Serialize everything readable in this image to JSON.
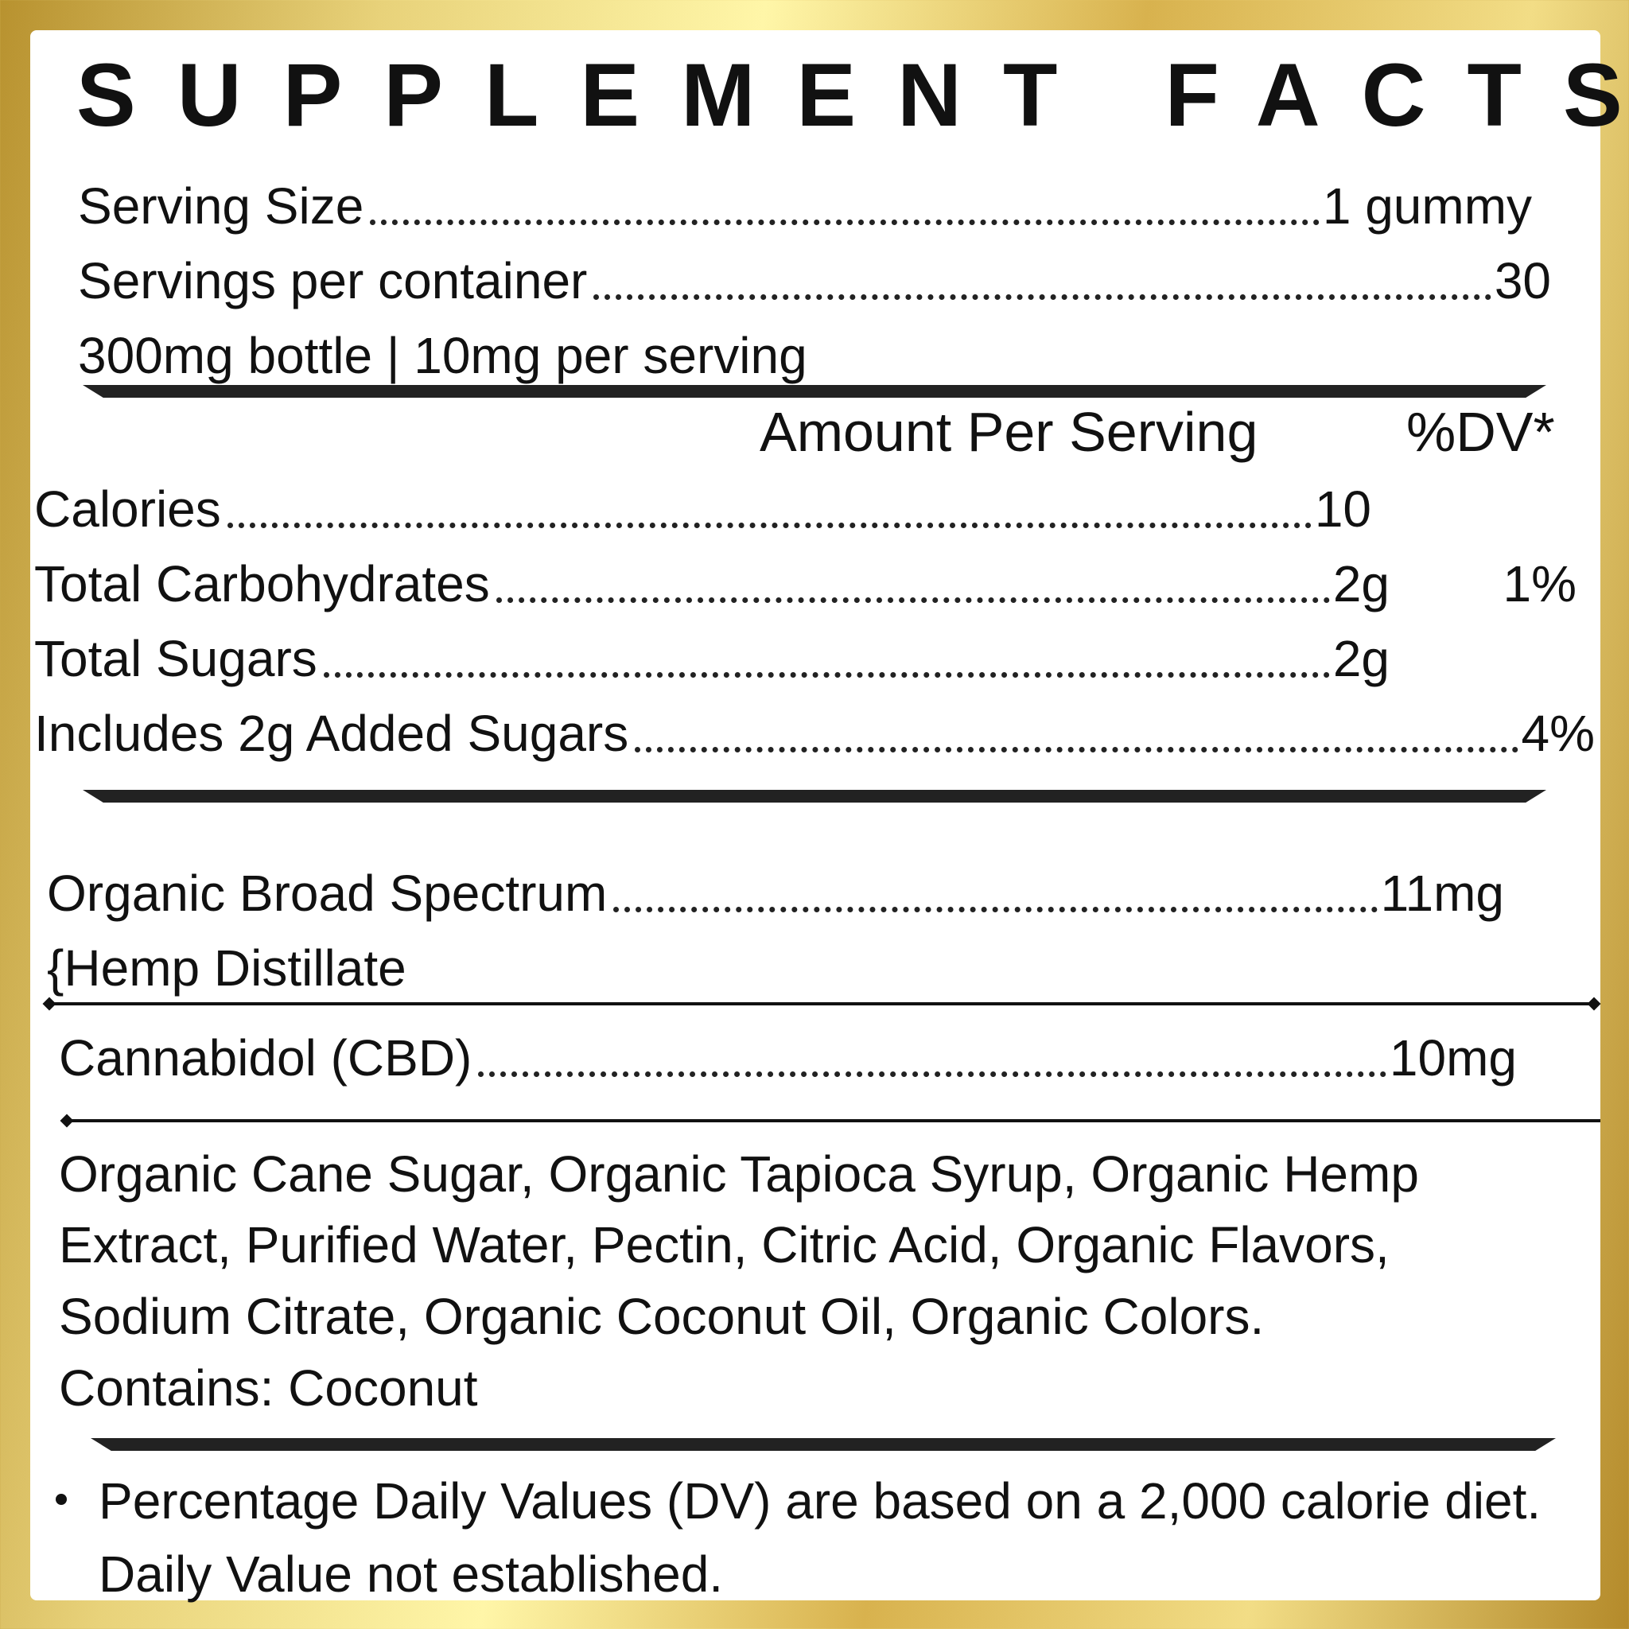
{
  "header": {
    "title": "SUPPLEMENT FACTS"
  },
  "serving": {
    "size_label": "Serving Size",
    "size_value": "1 gummy",
    "per_container_label": "Servings per container",
    "per_container_value": "30",
    "note": "300mg bottle | 10mg per serving"
  },
  "columns": {
    "amount": "Amount Per Serving",
    "dv": "%DV*"
  },
  "nutrients": [
    {
      "label": "Calories",
      "amount": "10"
    },
    {
      "label": "Total Carbohydrates",
      "amount": "2g",
      "dv": "1%"
    },
    {
      "label": "Total Sugars",
      "amount": "2g"
    },
    {
      "label": "Includes 2g Added Sugars",
      "dv": "4%"
    }
  ],
  "extract": {
    "label": "Organic Broad Spectrum",
    "amount": "11mg",
    "sublabel": "{Hemp Distillate"
  },
  "cbd": {
    "label": "Cannabidol (CBD)",
    "amount": "10mg"
  },
  "ingredients": {
    "lines": [
      "Organic Cane Sugar, Organic Tapioca Syrup, Organic Hemp",
      "Extract, Purified Water, Pectin, Citric Acid, Organic Flavors,",
      "Sodium Citrate, Organic Coconut Oil, Organic Colors.",
      "Contains: Coconut"
    ]
  },
  "footnote": "Percentage Daily Values (DV) are based on a 2,000 calorie diet. Daily Value not established."
}
